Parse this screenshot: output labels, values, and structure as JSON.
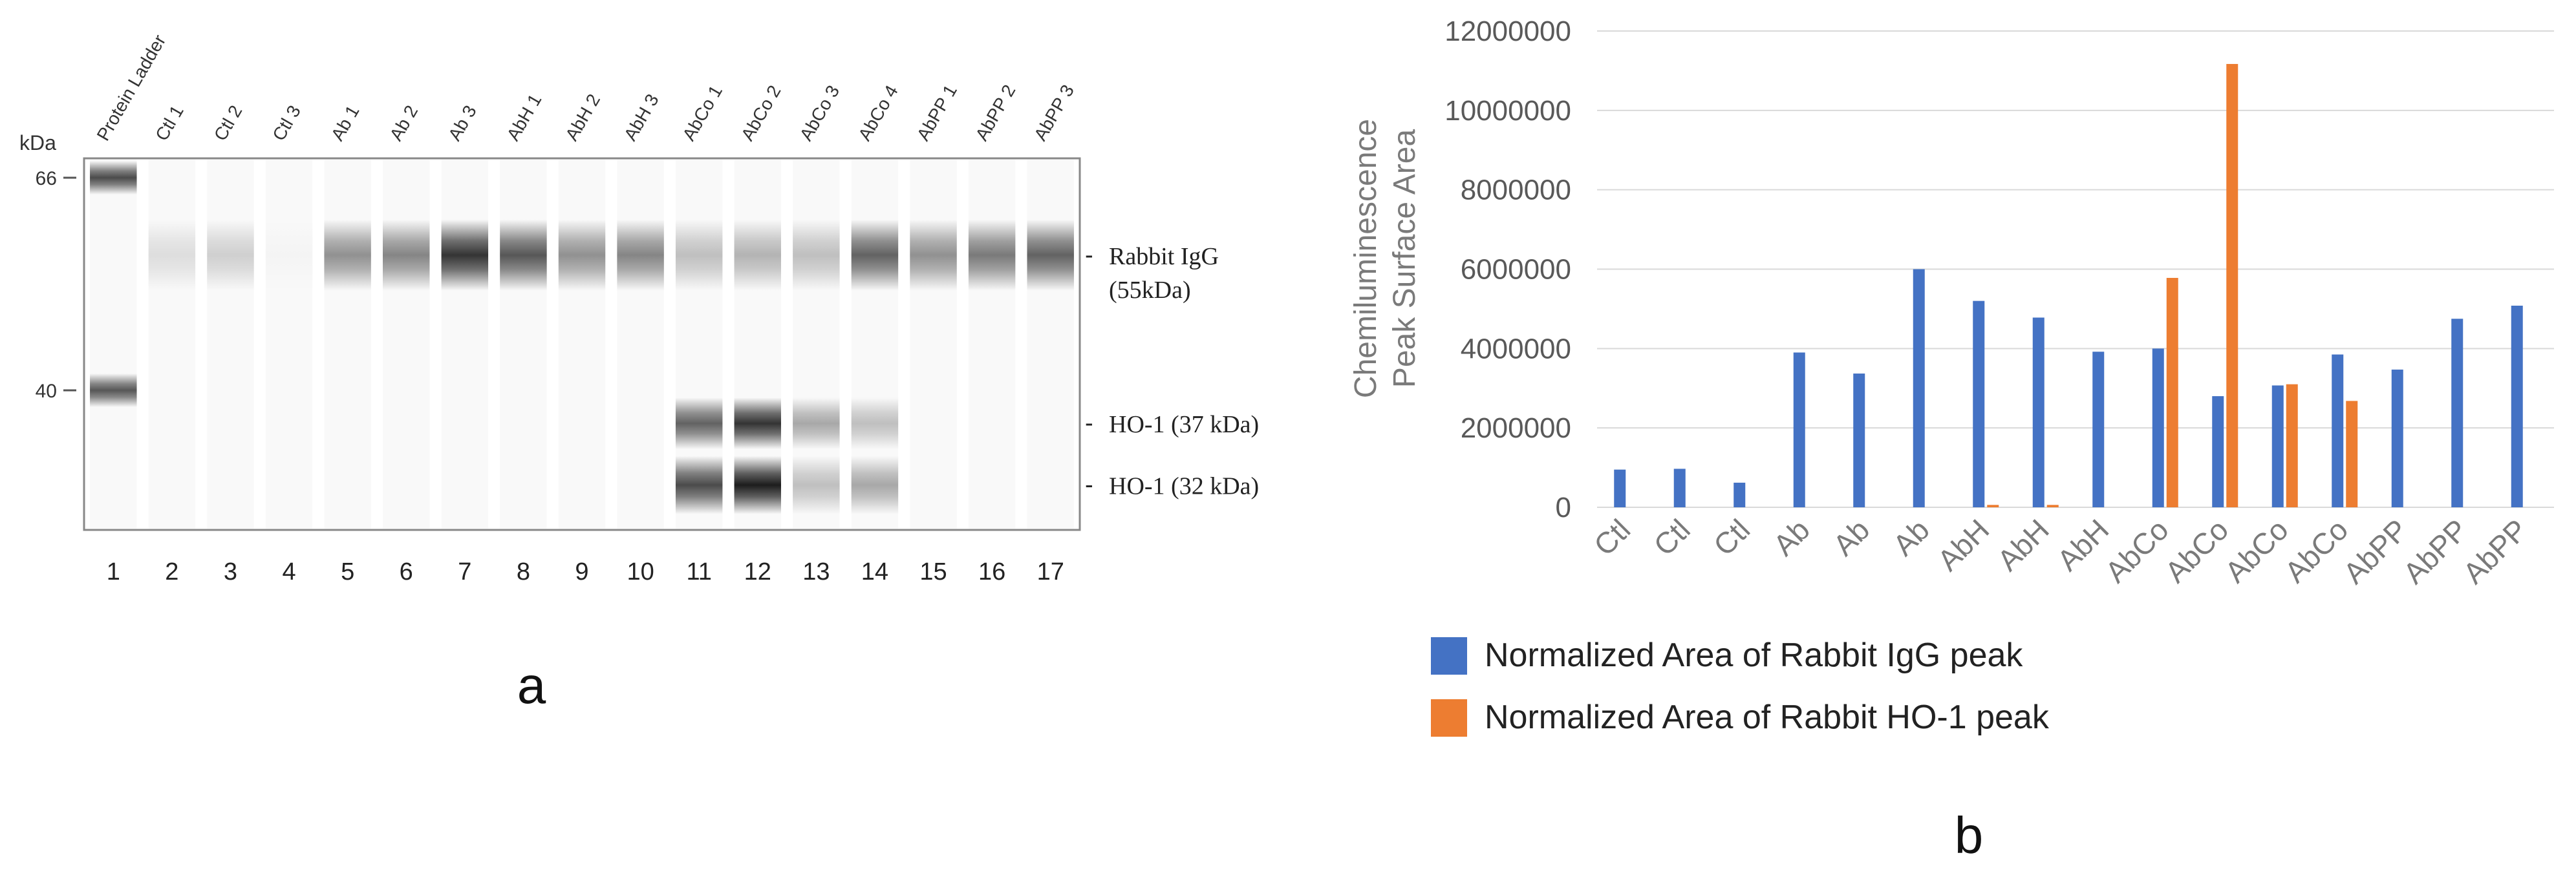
{
  "chart_data": [
    {
      "type": "gel",
      "panel_label": "a",
      "kda_label": "kDa",
      "marker_labels": [
        "66",
        "40"
      ],
      "lane_labels": [
        "Protein Ladder",
        "Ctl 1",
        "Ctl 2",
        "Ctl 3",
        "Ab 1",
        "Ab 2",
        "Ab 3",
        "AbH 1",
        "AbH 2",
        "AbH 3",
        "AbCo 1",
        "AbCo 2",
        "AbCo 3",
        "AbCo 4",
        "AbPP 1",
        "AbPP 2",
        "AbPP 3"
      ],
      "lane_numbers": [
        "1",
        "2",
        "3",
        "4",
        "5",
        "6",
        "7",
        "8",
        "9",
        "10",
        "11",
        "12",
        "13",
        "14",
        "15",
        "16",
        "17"
      ],
      "band_annotations": [
        {
          "dash": "-",
          "line1": "Rabbit IgG",
          "line2": "(55kDa)"
        },
        {
          "dash": "-",
          "line1": "HO-1 (37 kDa)",
          "line2": ""
        },
        {
          "dash": "-",
          "line1": "HO-1 (32 kDa)",
          "line2": ""
        }
      ],
      "band_kda": {
        "ladder": [
          66,
          40
        ],
        "igg": 55,
        "ho1_37": 37,
        "ho1_32": 32
      },
      "igg_intensity": [
        0,
        0.12,
        0.18,
        0.02,
        0.45,
        0.5,
        0.85,
        0.7,
        0.45,
        0.5,
        0.25,
        0.3,
        0.25,
        0.65,
        0.45,
        0.55,
        0.65
      ],
      "ho1_37_intensity": [
        0,
        0,
        0,
        0,
        0,
        0,
        0,
        0,
        0,
        0,
        0.65,
        0.85,
        0.35,
        0.25,
        0,
        0,
        0
      ],
      "ho1_32_intensity": [
        0,
        0,
        0,
        0,
        0,
        0,
        0,
        0,
        0,
        0,
        0.75,
        0.95,
        0.25,
        0.35,
        0,
        0,
        0
      ],
      "ladder_intensity": [
        0.75,
        0.7
      ]
    },
    {
      "type": "bar",
      "panel_label": "b",
      "ylabel_line1": "Chemiluminescence",
      "ylabel_line2": "Peak Surface Area",
      "ylim": [
        0,
        12000000
      ],
      "yticks": [
        "0",
        "2000000",
        "4000000",
        "6000000",
        "8000000",
        "10000000",
        "12000000"
      ],
      "grid": true,
      "categories": [
        "Ctl",
        "Ctl",
        "Ctl",
        "Ab",
        "Ab",
        "Ab",
        "AbH",
        "AbH",
        "AbH",
        "AbCo",
        "AbCo",
        "AbCo",
        "AbCo",
        "AbPP",
        "AbPP",
        "AbPP"
      ],
      "series": [
        {
          "name": "Normalized Area of Rabbit IgG peak",
          "color": "#4472c4",
          "values": [
            950000,
            970000,
            620000,
            3900000,
            3370000,
            6000000,
            5200000,
            4780000,
            3920000,
            4000000,
            2800000,
            3070000,
            3850000,
            3470000,
            4750000,
            5080000
          ]
        },
        {
          "name": "Normalized Area of Rabbit HO-1 peak",
          "color": "#ed7d31",
          "values": [
            0,
            0,
            0,
            0,
            0,
            0,
            60000,
            60000,
            0,
            5780000,
            11170000,
            3100000,
            2680000,
            0,
            0,
            0
          ]
        }
      ],
      "legend_position": "bottom-left"
    }
  ]
}
